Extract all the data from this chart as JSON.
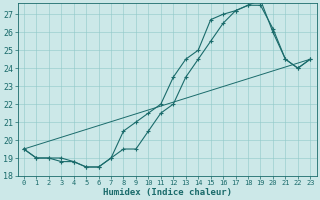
{
  "xlabel": "Humidex (Indice chaleur)",
  "bg_color": "#cce8e8",
  "line_color": "#1a6b6b",
  "xlim": [
    -0.5,
    23.5
  ],
  "ylim": [
    18,
    27.6
  ],
  "yticks": [
    18,
    19,
    20,
    21,
    22,
    23,
    24,
    25,
    26,
    27
  ],
  "xticks": [
    0,
    1,
    2,
    3,
    4,
    5,
    6,
    7,
    8,
    9,
    10,
    11,
    12,
    13,
    14,
    15,
    16,
    17,
    18,
    19,
    20,
    21,
    22,
    23
  ],
  "line1_x": [
    0,
    1,
    2,
    3,
    4,
    5,
    6,
    7,
    8,
    9,
    10,
    11,
    12,
    13,
    14,
    15,
    16,
    17,
    18,
    19,
    20,
    21,
    22,
    23
  ],
  "line1_y": [
    19.5,
    19.0,
    19.0,
    19.0,
    18.8,
    18.5,
    18.5,
    19.0,
    19.5,
    19.5,
    20.5,
    21.5,
    22.0,
    23.5,
    24.5,
    25.5,
    26.5,
    27.2,
    27.5,
    27.5,
    26.2,
    24.5,
    24.0,
    24.5
  ],
  "line2_x": [
    0,
    1,
    2,
    3,
    4,
    5,
    6,
    7,
    8,
    9,
    10,
    11,
    12,
    13,
    14,
    15,
    16,
    17,
    18,
    19,
    20,
    21,
    22,
    23
  ],
  "line2_y": [
    19.5,
    19.0,
    19.0,
    18.8,
    18.8,
    18.5,
    18.5,
    19.0,
    20.5,
    21.0,
    21.5,
    22.0,
    23.5,
    24.5,
    25.0,
    26.7,
    27.0,
    27.2,
    27.5,
    27.8,
    26.0,
    24.5,
    24.0,
    24.5
  ],
  "line3_x": [
    0,
    23
  ],
  "line3_y": [
    19.5,
    24.5
  ]
}
